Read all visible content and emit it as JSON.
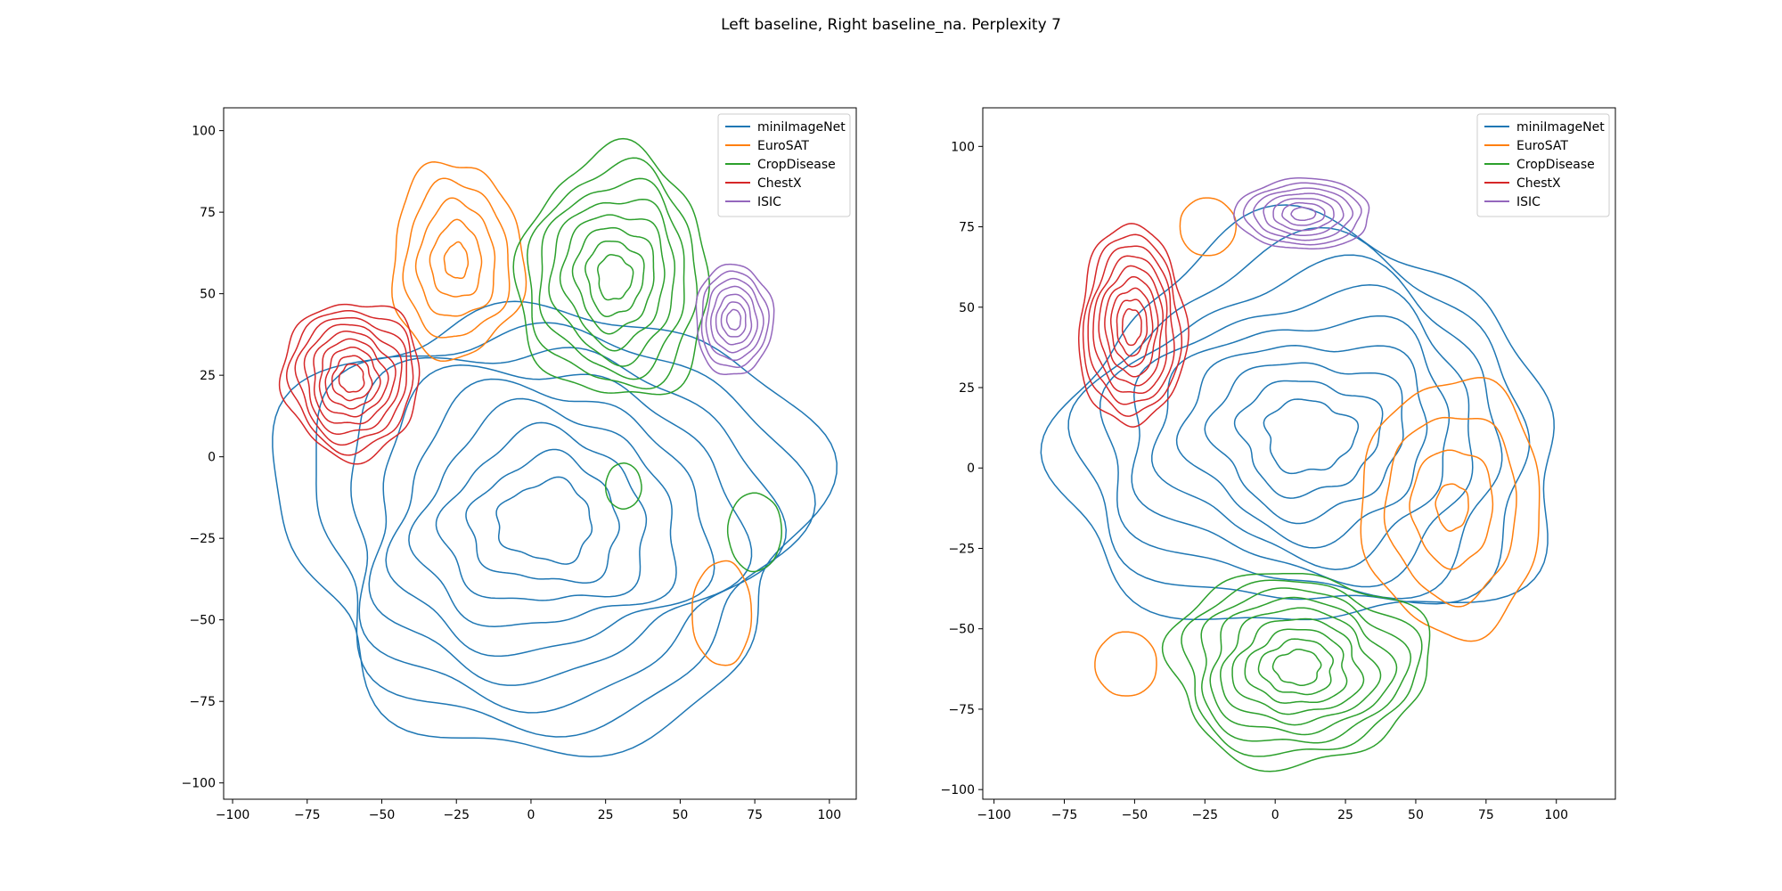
{
  "figure": {
    "title": "Left baseline, Right baseline_na. Perplexity 7"
  },
  "chart_data": [
    {
      "type": "contour",
      "panel": "left",
      "title": "",
      "xlabel": "",
      "ylabel": "",
      "xlim": [
        -103,
        109
      ],
      "ylim": [
        -105,
        107
      ],
      "xticks": [
        -100,
        -75,
        -50,
        -25,
        0,
        25,
        50,
        75,
        100
      ],
      "yticks": [
        -100,
        -75,
        -50,
        -25,
        0,
        25,
        50,
        75,
        100
      ],
      "legend": {
        "location": "top-right",
        "entries": [
          "miniImageNet",
          "EuroSAT",
          "CropDisease",
          "ChestX",
          "ISIC"
        ]
      },
      "series": [
        {
          "name": "miniImageNet",
          "color": "#1f77b4",
          "clusters": [
            {
              "cx": 5,
              "cy": -20,
              "rx": 88,
              "ry": 68,
              "levels": 9,
              "wobble": 4
            }
          ]
        },
        {
          "name": "EuroSAT",
          "color": "#ff7f0e",
          "clusters": [
            {
              "cx": -25,
              "cy": 60,
              "rx": 22,
              "ry": 30,
              "levels": 5,
              "wobble": 2.5
            },
            {
              "cx": 64,
              "cy": -48,
              "rx": 10,
              "ry": 16,
              "levels": 1,
              "wobble": 0.8
            }
          ]
        },
        {
          "name": "CropDisease",
          "color": "#2ca02c",
          "clusters": [
            {
              "cx": 28,
              "cy": 55,
              "rx": 32,
              "ry": 38,
              "levels": 8,
              "wobble": 3
            },
            {
              "cx": 75,
              "cy": -23,
              "rx": 9,
              "ry": 12,
              "levels": 1,
              "wobble": 0.6
            },
            {
              "cx": 31,
              "cy": -9,
              "rx": 6,
              "ry": 7,
              "levels": 1,
              "wobble": 0.4
            }
          ]
        },
        {
          "name": "ChestX",
          "color": "#d62728",
          "clusters": [
            {
              "cx": -60,
              "cy": 24,
              "rx": 23,
              "ry": 24,
              "levels": 9,
              "wobble": 2.5
            }
          ]
        },
        {
          "name": "ISIC",
          "color": "#9467bd",
          "clusters": [
            {
              "cx": 68,
              "cy": 42,
              "rx": 13,
              "ry": 17,
              "levels": 7,
              "wobble": 1.5
            }
          ]
        }
      ]
    },
    {
      "type": "contour",
      "panel": "right",
      "title": "",
      "xlabel": "",
      "ylabel": "",
      "xlim": [
        -104,
        121
      ],
      "ylim": [
        -103,
        112
      ],
      "xticks": [
        -100,
        -75,
        -50,
        -25,
        0,
        25,
        50,
        75,
        100
      ],
      "yticks": [
        -100,
        -75,
        -50,
        -25,
        0,
        25,
        50,
        75,
        100
      ],
      "legend": {
        "location": "top-right",
        "entries": [
          "miniImageNet",
          "EuroSAT",
          "CropDisease",
          "ChestX",
          "ISIC"
        ]
      },
      "series": [
        {
          "name": "miniImageNet",
          "color": "#1f77b4",
          "clusters": [
            {
              "cx": 12,
              "cy": 10,
              "rx": 88,
              "ry": 62,
              "levels": 9,
              "wobble": 4
            }
          ]
        },
        {
          "name": "EuroSAT",
          "color": "#ff7f0e",
          "clusters": [
            {
              "cx": 63,
              "cy": -12,
              "rx": 32,
              "ry": 40,
              "levels": 4,
              "wobble": 2
            },
            {
              "cx": -24,
              "cy": 75,
              "rx": 10,
              "ry": 9,
              "levels": 1,
              "wobble": 0.5
            },
            {
              "cx": -53,
              "cy": -61,
              "rx": 11,
              "ry": 10,
              "levels": 1,
              "wobble": 0.5
            }
          ]
        },
        {
          "name": "CropDisease",
          "color": "#2ca02c",
          "clusters": [
            {
              "cx": 8,
              "cy": -62,
              "rx": 46,
              "ry": 30,
              "levels": 9,
              "wobble": 3
            }
          ]
        },
        {
          "name": "ChestX",
          "color": "#d62728",
          "clusters": [
            {
              "cx": -51,
              "cy": 44,
              "rx": 19,
              "ry": 31,
              "levels": 9,
              "wobble": 2
            }
          ]
        },
        {
          "name": "ISIC",
          "color": "#9467bd",
          "clusters": [
            {
              "cx": 10,
              "cy": 79,
              "rx": 24,
              "ry": 11,
              "levels": 7,
              "wobble": 1.2
            }
          ]
        }
      ]
    }
  ]
}
